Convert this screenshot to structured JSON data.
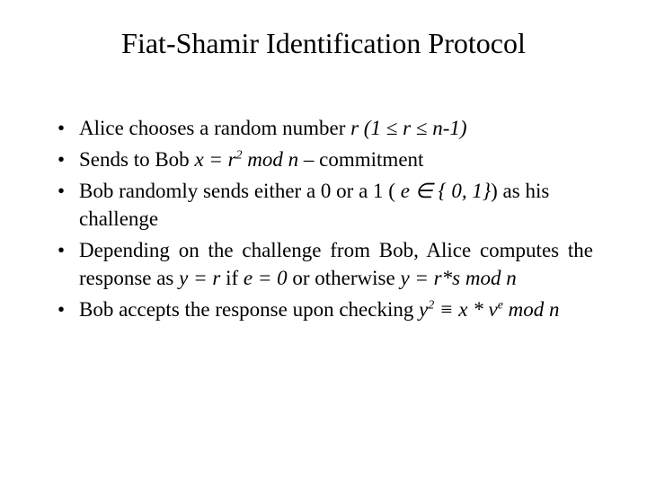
{
  "title": "Fiat-Shamir Identification Protocol",
  "bullets": {
    "b1_pre": "Alice chooses a random number ",
    "b1_r": "r (1 ",
    "b1_le1": "≤",
    "b1_r2": " r ",
    "b1_le2": "≤",
    "b1_end": " n-1)",
    "b2_pre": "Sends to Bob ",
    "b2_x": "x = r",
    "b2_sup2": "2",
    "b2_mod": " mod n",
    "b2_end": " – commitment",
    "b3_pre": "Bob randomly sends either a 0 or a 1 ( ",
    "b3_e": "e ",
    "b3_in": "∈",
    "b3_set": " { 0, 1}",
    "b3_end": ") as his challenge",
    "b4_pre": "Depending on the challenge from Bob, Alice computes the response as ",
    "b4_y1": "y = r",
    "b4_mid1": " if ",
    "b4_e0": "e = 0",
    "b4_mid2": " or otherwise ",
    "b4_y2": "y = r*s mod n",
    "b5_pre": "Bob accepts the response upon checking ",
    "b5_y": "y",
    "b5_sup2": "2",
    "b5_eq": " ≡ ",
    "b5_x": "x ",
    "b5_star": "*",
    "b5_v": " v",
    "b5_supe": "e",
    "b5_mod": " mod n"
  },
  "style": {
    "background": "#ffffff",
    "text_color": "#000000",
    "title_fontsize": 32,
    "body_fontsize": 23,
    "font_family": "Times New Roman"
  }
}
